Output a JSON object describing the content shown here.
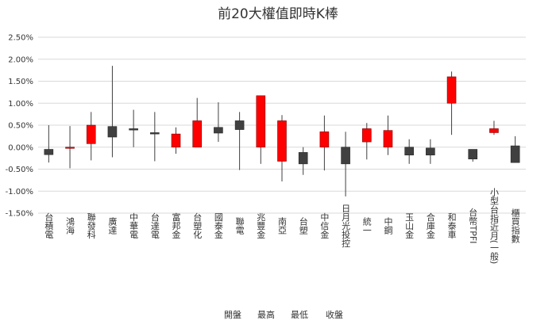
{
  "chart_data": {
    "type": "candlestick",
    "title": "前20大權值即時K棒",
    "ylim": [
      -0.015,
      0.025
    ],
    "yticks": [
      "-1.50%",
      "-1.00%",
      "-0.50%",
      "0.00%",
      "0.50%",
      "1.00%",
      "1.50%",
      "2.00%",
      "2.50%"
    ],
    "ytick_values": [
      -0.015,
      -0.01,
      -0.005,
      0,
      0.005,
      0.01,
      0.015,
      0.02,
      0.025
    ],
    "legend": [
      "開盤",
      "最高",
      "最低",
      "收盤"
    ],
    "up_color": "#ff0000",
    "down_color": "#404040",
    "candles": [
      {
        "name": "台積電",
        "open": -0.0005,
        "high": 0.005,
        "low": -0.0035,
        "close": -0.0017
      },
      {
        "name": "鴻海",
        "open": 0.0,
        "high": 0.0048,
        "low": -0.0048,
        "close": 0.0
      },
      {
        "name": "聯發科",
        "open": 0.0008,
        "high": 0.008,
        "low": -0.003,
        "close": 0.005
      },
      {
        "name": "廣達",
        "open": 0.0047,
        "high": 0.0185,
        "low": -0.0023,
        "close": 0.0023
      },
      {
        "name": "中華電",
        "open": 0.0042,
        "high": 0.0085,
        "low": 0.0,
        "close": 0.0039
      },
      {
        "name": "台達電",
        "open": 0.0033,
        "high": 0.008,
        "low": -0.0032,
        "close": 0.003
      },
      {
        "name": "富邦金",
        "open": 0.0,
        "high": 0.0045,
        "low": -0.0015,
        "close": 0.003
      },
      {
        "name": "台塑化",
        "open": 0.0,
        "high": 0.0112,
        "low": 0.0,
        "close": 0.006
      },
      {
        "name": "國泰金",
        "open": 0.0045,
        "high": 0.0102,
        "low": 0.0012,
        "close": 0.0032
      },
      {
        "name": "聯電",
        "open": 0.006,
        "high": 0.008,
        "low": -0.0052,
        "close": 0.004
      },
      {
        "name": "兆豐金",
        "open": 0.0,
        "high": 0.0117,
        "low": -0.0038,
        "close": 0.0117
      },
      {
        "name": "南亞",
        "open": -0.0032,
        "high": 0.0073,
        "low": -0.0078,
        "close": 0.006
      },
      {
        "name": "台塑",
        "open": -0.0012,
        "high": 0.0,
        "low": -0.0063,
        "close": -0.0038
      },
      {
        "name": "中信金",
        "open": 0.0,
        "high": 0.0072,
        "low": -0.0053,
        "close": 0.0035
      },
      {
        "name": "日月光投控",
        "open": 0.0,
        "high": 0.0035,
        "low": -0.0112,
        "close": -0.0038
      },
      {
        "name": "統一",
        "open": 0.0012,
        "high": 0.0055,
        "low": -0.0028,
        "close": 0.0042
      },
      {
        "name": "中鋼",
        "open": 0.0,
        "high": 0.0072,
        "low": -0.0018,
        "close": 0.0038
      },
      {
        "name": "玉山金",
        "open": 0.0,
        "high": 0.0018,
        "low": -0.0038,
        "close": -0.0018
      },
      {
        "name": "合庫金",
        "open": -0.0002,
        "high": 0.0018,
        "low": -0.0038,
        "close": -0.0018
      },
      {
        "name": "和泰車",
        "open": 0.01,
        "high": 0.0172,
        "low": 0.0028,
        "close": 0.016
      },
      {
        "name": "台幣TPFI",
        "open": -0.0005,
        "high": -0.0005,
        "low": -0.0033,
        "close": -0.0027
      },
      {
        "name": "小型台指近月(一般)",
        "open": 0.0033,
        "high": 0.006,
        "low": 0.0028,
        "close": 0.0042
      },
      {
        "name": "櫃買指數",
        "open": 0.0003,
        "high": 0.0025,
        "low": -0.0035,
        "close": -0.0035
      }
    ]
  }
}
